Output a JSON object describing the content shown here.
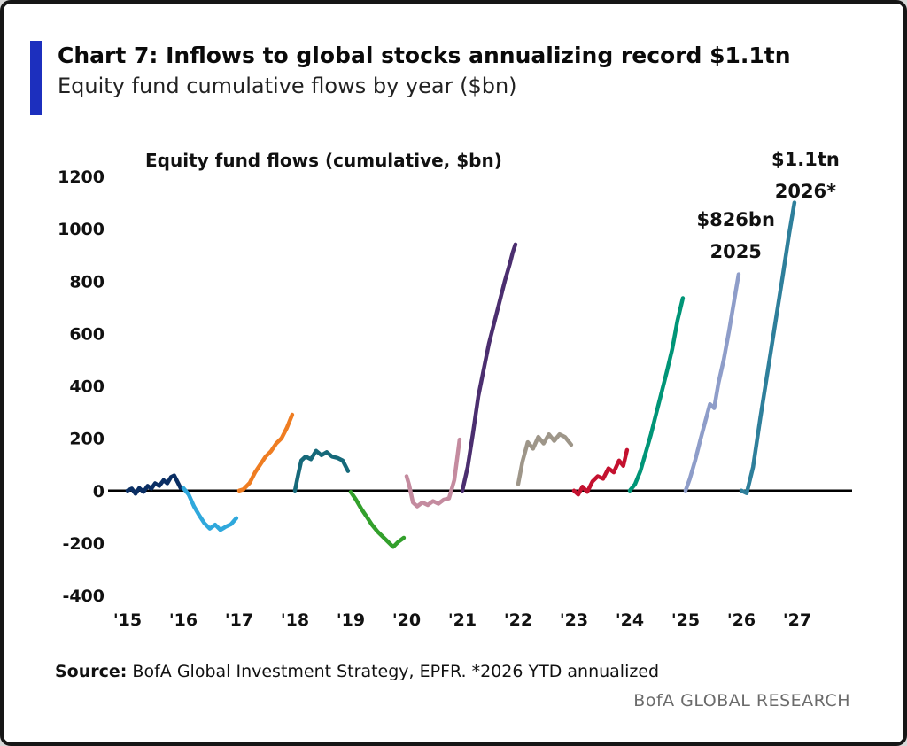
{
  "header": {
    "title": "Chart 7: Inflows to global stocks annualizing record $1.1tn",
    "subtitle": "Equity fund cumulative flows by year ($bn)",
    "accent_color": "#1c2fbe"
  },
  "chart_data": {
    "type": "line",
    "title": "Equity fund flows (cumulative, $bn)",
    "xlabel": "",
    "ylabel": "",
    "ylim": [
      -400,
      1200
    ],
    "yticks": [
      1200,
      1000,
      800,
      600,
      400,
      200,
      0,
      -200,
      -400
    ],
    "x_years": [
      2015,
      2016,
      2017,
      2018,
      2019,
      2020,
      2021,
      2022,
      2023,
      2024,
      2025,
      2026,
      2027
    ],
    "xticklabels": [
      "'15",
      "'16",
      "'17",
      "'18",
      "'19",
      "'20",
      "'21",
      "'22",
      "'23",
      "'24",
      "'25",
      "'26",
      "'27"
    ],
    "grid": false,
    "legend": false,
    "axis_color": "#000000",
    "annotations": [
      {
        "lines": [
          "$1.1tn",
          "2026*"
        ],
        "x_year": 2027.15,
        "y_value": 1240
      },
      {
        "lines": [
          "$826bn",
          "2025"
        ],
        "x_year": 2025.9,
        "y_value": 1010
      }
    ],
    "series": [
      {
        "name": "2015",
        "color": "#0a2e63",
        "year": 2015,
        "f": [
          0,
          0.08,
          0.15,
          0.22,
          0.3,
          0.38,
          0.45,
          0.52,
          0.6,
          0.68,
          0.75,
          0.82,
          0.88,
          1
        ],
        "values": [
          0,
          8,
          -12,
          10,
          -5,
          18,
          8,
          28,
          18,
          40,
          28,
          52,
          58,
          10
        ]
      },
      {
        "name": "2016",
        "color": "#2fa8dc",
        "year": 2016,
        "f": [
          0,
          0.1,
          0.2,
          0.3,
          0.4,
          0.5,
          0.6,
          0.7,
          0.8,
          0.9,
          1
        ],
        "values": [
          10,
          -15,
          -60,
          -95,
          -125,
          -145,
          -130,
          -150,
          -138,
          -128,
          -105
        ]
      },
      {
        "name": "2017",
        "color": "#ef7d22",
        "year": 2017,
        "f": [
          0,
          0.08,
          0.2,
          0.3,
          0.4,
          0.5,
          0.6,
          0.7,
          0.8,
          0.9,
          1
        ],
        "values": [
          0,
          5,
          30,
          70,
          100,
          130,
          150,
          180,
          200,
          240,
          290
        ]
      },
      {
        "name": "2018",
        "color": "#16697a",
        "year": 2018,
        "f": [
          0,
          0.06,
          0.12,
          0.2,
          0.3,
          0.4,
          0.5,
          0.6,
          0.7,
          0.8,
          0.9,
          1
        ],
        "values": [
          0,
          60,
          115,
          130,
          120,
          152,
          135,
          147,
          130,
          125,
          115,
          75
        ]
      },
      {
        "name": "2019",
        "color": "#33a02c",
        "year": 2019,
        "f": [
          0,
          0.1,
          0.2,
          0.3,
          0.4,
          0.5,
          0.6,
          0.7,
          0.8,
          0.9,
          1
        ],
        "values": [
          -5,
          -35,
          -70,
          -100,
          -130,
          -155,
          -175,
          -195,
          -215,
          -195,
          -180
        ]
      },
      {
        "name": "2020",
        "color": "#c48b9f",
        "year": 2020,
        "f": [
          0,
          0.05,
          0.12,
          0.2,
          0.3,
          0.4,
          0.5,
          0.6,
          0.7,
          0.8,
          0.9,
          1
        ],
        "values": [
          55,
          20,
          -45,
          -60,
          -45,
          -55,
          -40,
          -50,
          -35,
          -30,
          40,
          195
        ]
      },
      {
        "name": "2021",
        "color": "#4b2e6f",
        "year": 2021,
        "f": [
          0,
          0.1,
          0.2,
          0.3,
          0.4,
          0.5,
          0.6,
          0.7,
          0.8,
          0.9,
          0.95,
          1
        ],
        "values": [
          0,
          90,
          220,
          360,
          460,
          560,
          640,
          720,
          800,
          870,
          910,
          940
        ]
      },
      {
        "name": "2022",
        "color": "#9e9689",
        "year": 2022,
        "f": [
          0,
          0.08,
          0.18,
          0.28,
          0.38,
          0.48,
          0.58,
          0.68,
          0.78,
          0.88,
          1
        ],
        "values": [
          25,
          110,
          185,
          160,
          205,
          180,
          215,
          190,
          215,
          205,
          175
        ]
      },
      {
        "name": "2023",
        "color": "#c4112f",
        "year": 2023,
        "f": [
          0,
          0.08,
          0.16,
          0.25,
          0.35,
          0.45,
          0.55,
          0.65,
          0.75,
          0.85,
          0.93,
          1
        ],
        "values": [
          0,
          -15,
          15,
          -5,
          35,
          55,
          45,
          85,
          70,
          115,
          95,
          155
        ]
      },
      {
        "name": "2024",
        "color": "#009577",
        "year": 2024,
        "f": [
          0,
          0.1,
          0.2,
          0.3,
          0.4,
          0.5,
          0.6,
          0.7,
          0.8,
          0.9,
          1
        ],
        "values": [
          0,
          25,
          75,
          145,
          215,
          295,
          375,
          455,
          540,
          650,
          735
        ]
      },
      {
        "name": "2025",
        "color": "#8e9dc9",
        "year": 2025,
        "f": [
          0,
          0.08,
          0.18,
          0.28,
          0.38,
          0.46,
          0.54,
          0.62,
          0.72,
          0.82,
          0.92,
          1
        ],
        "values": [
          0,
          45,
          115,
          195,
          270,
          330,
          315,
          410,
          500,
          610,
          730,
          826
        ]
      },
      {
        "name": "2026",
        "color": "#2e7f9b",
        "year": 2026,
        "f": [
          0,
          0.1,
          0.22,
          0.36,
          0.5,
          0.64,
          0.78,
          0.9,
          1
        ],
        "values": [
          0,
          -10,
          90,
          280,
          460,
          640,
          820,
          980,
          1100
        ]
      }
    ]
  },
  "footer": {
    "source_label": "Source:",
    "source_text": " BofA Global Investment Strategy, EPFR. *2026 YTD annualized",
    "brand": "BofA GLOBAL RESEARCH"
  }
}
